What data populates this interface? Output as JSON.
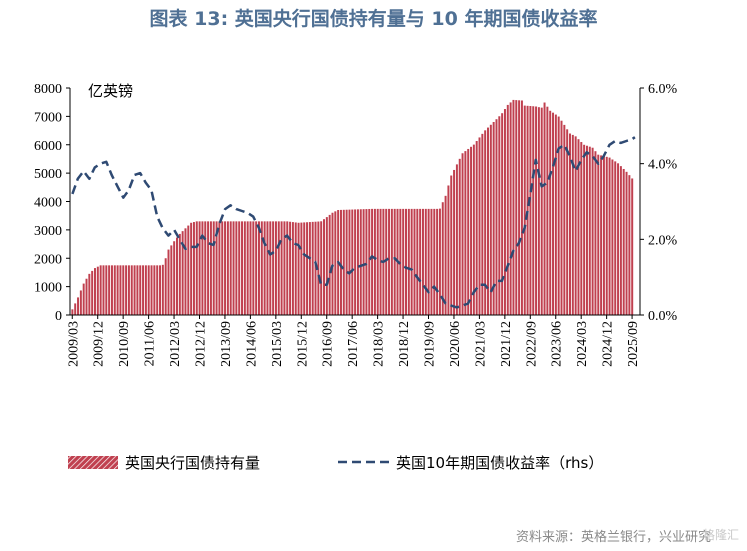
{
  "title": "图表 13: 英国央行国债持有量与 10 年期国债收益率",
  "source": "资料来源：英格兰银行，兴业研究",
  "watermark": "格隆汇",
  "chart_data": {
    "type": "bar+line",
    "left_axis": {
      "unit_label": "亿英镑",
      "ylim": [
        0,
        8000
      ],
      "ticks": [
        "0",
        "1000",
        "2000",
        "3000",
        "4000",
        "5000",
        "6000",
        "7000",
        "8000"
      ]
    },
    "right_axis": {
      "ylim": [
        0,
        6
      ],
      "ticks": [
        "0.0%",
        "2.0%",
        "4.0%",
        "6.0%"
      ],
      "tick_values": [
        0,
        2,
        4,
        6
      ]
    },
    "x_tick_labels": [
      "2009/03",
      "2009/12",
      "2010/09",
      "2011/06",
      "2012/03",
      "2012/12",
      "2013/09",
      "2014/06",
      "2015/03",
      "2015/12",
      "2016/09",
      "2017/06",
      "2018/03",
      "2018/12",
      "2019/09",
      "2020/06",
      "2021/03",
      "2021/12",
      "2022/09",
      "2023/06",
      "2024/03",
      "2024/12",
      "2025/09"
    ],
    "grid": false,
    "legend_position": "bottom",
    "colors": {
      "bar": "#c0404f",
      "line": "#2f4a73"
    },
    "series": [
      {
        "name": "英国央行国债持有量",
        "kind": "bar",
        "axis": "left",
        "points": [
          [
            2009.17,
            200
          ],
          [
            2009.33,
            600
          ],
          [
            2009.5,
            1100
          ],
          [
            2009.67,
            1450
          ],
          [
            2009.83,
            1650
          ],
          [
            2010.0,
            1750
          ],
          [
            2010.5,
            1750
          ],
          [
            2011.0,
            1750
          ],
          [
            2011.5,
            1750
          ],
          [
            2011.83,
            1750
          ],
          [
            2011.92,
            2000
          ],
          [
            2012.0,
            2300
          ],
          [
            2012.17,
            2600
          ],
          [
            2012.33,
            2850
          ],
          [
            2012.5,
            3050
          ],
          [
            2012.67,
            3250
          ],
          [
            2012.83,
            3300
          ],
          [
            2013.5,
            3300
          ],
          [
            2014.5,
            3300
          ],
          [
            2015.5,
            3300
          ],
          [
            2015.83,
            3250
          ],
          [
            2016.5,
            3300
          ],
          [
            2016.67,
            3450
          ],
          [
            2016.83,
            3600
          ],
          [
            2017.0,
            3700
          ],
          [
            2017.5,
            3720
          ],
          [
            2018.0,
            3740
          ],
          [
            2019.0,
            3740
          ],
          [
            2019.5,
            3740
          ],
          [
            2020.0,
            3740
          ],
          [
            2020.17,
            4200
          ],
          [
            2020.33,
            4900
          ],
          [
            2020.5,
            5300
          ],
          [
            2020.67,
            5700
          ],
          [
            2021.0,
            6000
          ],
          [
            2021.33,
            6500
          ],
          [
            2021.67,
            6900
          ],
          [
            2021.83,
            7100
          ],
          [
            2022.0,
            7400
          ],
          [
            2022.17,
            7580
          ],
          [
            2022.42,
            7560
          ],
          [
            2022.5,
            7380
          ],
          [
            2022.83,
            7350
          ],
          [
            2023.0,
            7300
          ],
          [
            2023.08,
            7500
          ],
          [
            2023.25,
            7200
          ],
          [
            2023.5,
            7000
          ],
          [
            2023.67,
            6700
          ],
          [
            2023.83,
            6400
          ],
          [
            2024.0,
            6300
          ],
          [
            2024.25,
            6000
          ],
          [
            2024.5,
            5900
          ],
          [
            2024.67,
            5650
          ],
          [
            2025.0,
            5550
          ],
          [
            2025.25,
            5350
          ],
          [
            2025.5,
            5050
          ],
          [
            2025.75,
            4700
          ]
        ]
      },
      {
        "name": "英国10年期国债收益率（rhs）",
        "kind": "line",
        "axis": "right",
        "points": [
          [
            2009.17,
            3.2
          ],
          [
            2009.33,
            3.6
          ],
          [
            2009.5,
            3.8
          ],
          [
            2009.67,
            3.6
          ],
          [
            2009.83,
            3.9
          ],
          [
            2010.0,
            4.0
          ],
          [
            2010.17,
            4.05
          ],
          [
            2010.33,
            3.7
          ],
          [
            2010.5,
            3.4
          ],
          [
            2010.67,
            3.1
          ],
          [
            2010.83,
            3.3
          ],
          [
            2011.0,
            3.7
          ],
          [
            2011.17,
            3.75
          ],
          [
            2011.33,
            3.5
          ],
          [
            2011.5,
            3.3
          ],
          [
            2011.67,
            2.6
          ],
          [
            2011.83,
            2.3
          ],
          [
            2012.0,
            2.1
          ],
          [
            2012.17,
            2.25
          ],
          [
            2012.33,
            2.0
          ],
          [
            2012.5,
            1.75
          ],
          [
            2012.67,
            1.8
          ],
          [
            2012.83,
            1.8
          ],
          [
            2013.0,
            2.1
          ],
          [
            2013.17,
            1.9
          ],
          [
            2013.33,
            1.85
          ],
          [
            2013.5,
            2.4
          ],
          [
            2013.67,
            2.8
          ],
          [
            2013.83,
            2.9
          ],
          [
            2014.0,
            2.8
          ],
          [
            2014.17,
            2.75
          ],
          [
            2014.33,
            2.7
          ],
          [
            2014.5,
            2.6
          ],
          [
            2014.67,
            2.3
          ],
          [
            2014.83,
            1.9
          ],
          [
            2015.0,
            1.6
          ],
          [
            2015.17,
            1.7
          ],
          [
            2015.33,
            2.0
          ],
          [
            2015.5,
            2.1
          ],
          [
            2015.67,
            1.9
          ],
          [
            2015.83,
            1.85
          ],
          [
            2016.0,
            1.6
          ],
          [
            2016.17,
            1.5
          ],
          [
            2016.33,
            1.4
          ],
          [
            2016.5,
            0.8
          ],
          [
            2016.67,
            0.8
          ],
          [
            2016.83,
            1.3
          ],
          [
            2017.0,
            1.4
          ],
          [
            2017.17,
            1.2
          ],
          [
            2017.33,
            1.1
          ],
          [
            2017.5,
            1.25
          ],
          [
            2017.67,
            1.3
          ],
          [
            2017.83,
            1.35
          ],
          [
            2018.0,
            1.55
          ],
          [
            2018.17,
            1.45
          ],
          [
            2018.33,
            1.4
          ],
          [
            2018.5,
            1.5
          ],
          [
            2018.67,
            1.5
          ],
          [
            2018.83,
            1.35
          ],
          [
            2019.0,
            1.25
          ],
          [
            2019.17,
            1.2
          ],
          [
            2019.33,
            1.0
          ],
          [
            2019.5,
            0.8
          ],
          [
            2019.67,
            0.6
          ],
          [
            2019.83,
            0.75
          ],
          [
            2020.0,
            0.55
          ],
          [
            2020.17,
            0.3
          ],
          [
            2020.33,
            0.25
          ],
          [
            2020.5,
            0.2
          ],
          [
            2020.67,
            0.25
          ],
          [
            2020.83,
            0.3
          ],
          [
            2021.0,
            0.6
          ],
          [
            2021.17,
            0.8
          ],
          [
            2021.33,
            0.8
          ],
          [
            2021.5,
            0.6
          ],
          [
            2021.67,
            0.9
          ],
          [
            2021.83,
            0.9
          ],
          [
            2022.0,
            1.3
          ],
          [
            2022.17,
            1.7
          ],
          [
            2022.33,
            1.9
          ],
          [
            2022.5,
            2.3
          ],
          [
            2022.67,
            3.2
          ],
          [
            2022.83,
            4.1
          ],
          [
            2023.0,
            3.4
          ],
          [
            2023.17,
            3.5
          ],
          [
            2023.33,
            3.9
          ],
          [
            2023.5,
            4.4
          ],
          [
            2023.67,
            4.5
          ],
          [
            2023.83,
            4.2
          ],
          [
            2024.0,
            3.8
          ],
          [
            2024.17,
            4.1
          ],
          [
            2024.33,
            4.3
          ],
          [
            2024.5,
            4.2
          ],
          [
            2024.67,
            4.0
          ],
          [
            2024.83,
            4.2
          ],
          [
            2025.0,
            4.5
          ],
          [
            2025.17,
            4.6
          ],
          [
            2025.33,
            4.55
          ],
          [
            2025.5,
            4.6
          ],
          [
            2025.67,
            4.65
          ],
          [
            2025.75,
            4.7
          ]
        ]
      }
    ]
  }
}
